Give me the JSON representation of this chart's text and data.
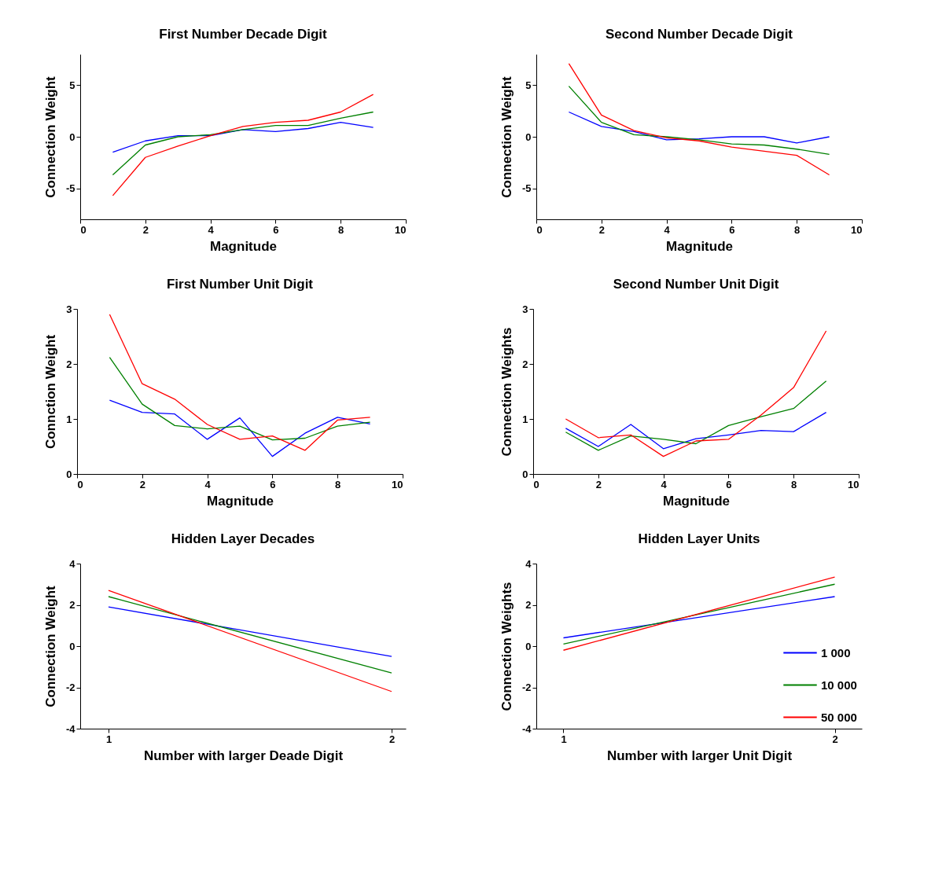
{
  "chart_data": [
    {
      "type": "line",
      "title": "First Number Decade Digit",
      "xlabel": "Magnitude",
      "ylabel": "Connection Weight",
      "x": [
        1,
        2,
        3,
        4,
        5,
        6,
        7,
        8,
        9
      ],
      "xlim": [
        0,
        10
      ],
      "xticks": [
        0,
        2,
        4,
        6,
        8,
        10
      ],
      "ylim": [
        -8,
        8
      ],
      "yticks": [
        -5,
        0,
        5
      ],
      "series": [
        {
          "color": "#0000ff",
          "values": [
            -1.5,
            -0.4,
            0.1,
            0.1,
            0.7,
            0.5,
            0.8,
            1.4,
            0.9
          ]
        },
        {
          "color": "#008000",
          "values": [
            -3.7,
            -0.8,
            0,
            0.2,
            0.7,
            1.1,
            1.1,
            1.8,
            2.4
          ]
        },
        {
          "color": "#ff0000",
          "values": [
            -5.7,
            -2.0,
            -0.9,
            0.1,
            1.0,
            1.4,
            1.6,
            2.4,
            4.1
          ]
        }
      ]
    },
    {
      "type": "line",
      "title": "Second Number Decade Digit",
      "xlabel": "Magnitude",
      "ylabel": "Connection Weight",
      "x": [
        1,
        2,
        3,
        4,
        5,
        6,
        7,
        8,
        9
      ],
      "xlim": [
        0,
        10
      ],
      "xticks": [
        0,
        2,
        4,
        6,
        8,
        10
      ],
      "ylim": [
        -8,
        8
      ],
      "yticks": [
        -5,
        0,
        5
      ],
      "series": [
        {
          "color": "#0000ff",
          "values": [
            2.4,
            1.0,
            0.5,
            -0.3,
            -0.2,
            0,
            0,
            -0.6,
            0
          ]
        },
        {
          "color": "#008000",
          "values": [
            4.9,
            1.4,
            0.2,
            0,
            -0.3,
            -0.7,
            -0.8,
            -1.2,
            -1.7
          ]
        },
        {
          "color": "#ff0000",
          "values": [
            7.1,
            2.1,
            0.6,
            -0.1,
            -0.4,
            -1.0,
            -1.4,
            -1.8,
            -3.7
          ]
        }
      ]
    },
    {
      "type": "line",
      "title": "First Number Unit Digit",
      "xlabel": "Magnitude",
      "ylabel": "Connction Weight",
      "x": [
        1,
        2,
        3,
        4,
        5,
        6,
        7,
        8,
        9
      ],
      "xlim": [
        0,
        10
      ],
      "xticks": [
        0,
        2,
        4,
        6,
        8,
        10
      ],
      "ylim": [
        0,
        3
      ],
      "yticks": [
        0,
        1,
        2,
        3
      ],
      "series": [
        {
          "color": "#0000ff",
          "values": [
            1.34,
            1.12,
            1.09,
            0.63,
            1.02,
            0.32,
            0.74,
            1.03,
            0.91
          ]
        },
        {
          "color": "#008000",
          "values": [
            2.12,
            1.27,
            0.88,
            0.82,
            0.87,
            0.62,
            0.65,
            0.87,
            0.94
          ]
        },
        {
          "color": "#ff0000",
          "values": [
            2.9,
            1.64,
            1.36,
            0.9,
            0.63,
            0.69,
            0.43,
            0.98,
            1.03
          ]
        }
      ]
    },
    {
      "type": "line",
      "title": "Second Number Unit Digit",
      "xlabel": "Magnitude",
      "ylabel": "Connection Weights",
      "x": [
        1,
        2,
        3,
        4,
        5,
        6,
        7,
        8,
        9
      ],
      "xlim": [
        0,
        10
      ],
      "xticks": [
        0,
        2,
        4,
        6,
        8,
        10
      ],
      "ylim": [
        0,
        3
      ],
      "yticks": [
        0,
        1,
        2,
        3
      ],
      "series": [
        {
          "color": "#0000ff",
          "values": [
            0.83,
            0.5,
            0.9,
            0.46,
            0.64,
            0.71,
            0.79,
            0.77,
            1.12
          ]
        },
        {
          "color": "#008000",
          "values": [
            0.76,
            0.43,
            0.69,
            0.63,
            0.55,
            0.88,
            1.04,
            1.19,
            1.69
          ]
        },
        {
          "color": "#ff0000",
          "values": [
            1.0,
            0.66,
            0.71,
            0.32,
            0.6,
            0.63,
            1.07,
            1.57,
            2.6
          ]
        }
      ]
    },
    {
      "type": "line",
      "title": "Hidden Layer Decades",
      "xlabel": "Number with larger Deade Digit",
      "ylabel": "Connection Weight",
      "x": [
        1,
        2
      ],
      "xlim": [
        0.9,
        2.05
      ],
      "xticks": [
        1,
        2
      ],
      "ylim": [
        -4,
        4
      ],
      "yticks": [
        -4,
        -2,
        0,
        2,
        4
      ],
      "series": [
        {
          "color": "#0000ff",
          "values": [
            1.9,
            -0.5
          ]
        },
        {
          "color": "#008000",
          "values": [
            2.4,
            -1.3
          ]
        },
        {
          "color": "#ff0000",
          "values": [
            2.7,
            -2.2
          ]
        }
      ]
    },
    {
      "type": "line",
      "title": "Hidden Layer Units",
      "xlabel": "Number with larger Unit Digit",
      "ylabel": "Connection Weights",
      "x": [
        1,
        2
      ],
      "xlim": [
        0.9,
        2.1
      ],
      "xticks": [
        1,
        2
      ],
      "ylim": [
        -4,
        4
      ],
      "yticks": [
        -4,
        -2,
        0,
        2,
        4
      ],
      "legend": "bottom right",
      "series": [
        {
          "name": "1 000",
          "color": "#0000ff",
          "values": [
            0.4,
            2.4
          ]
        },
        {
          "name": "10 000",
          "color": "#008000",
          "values": [
            0.1,
            3.0
          ]
        },
        {
          "name": "50 000",
          "color": "#ff0000",
          "values": [
            -0.2,
            3.35
          ]
        }
      ]
    }
  ]
}
